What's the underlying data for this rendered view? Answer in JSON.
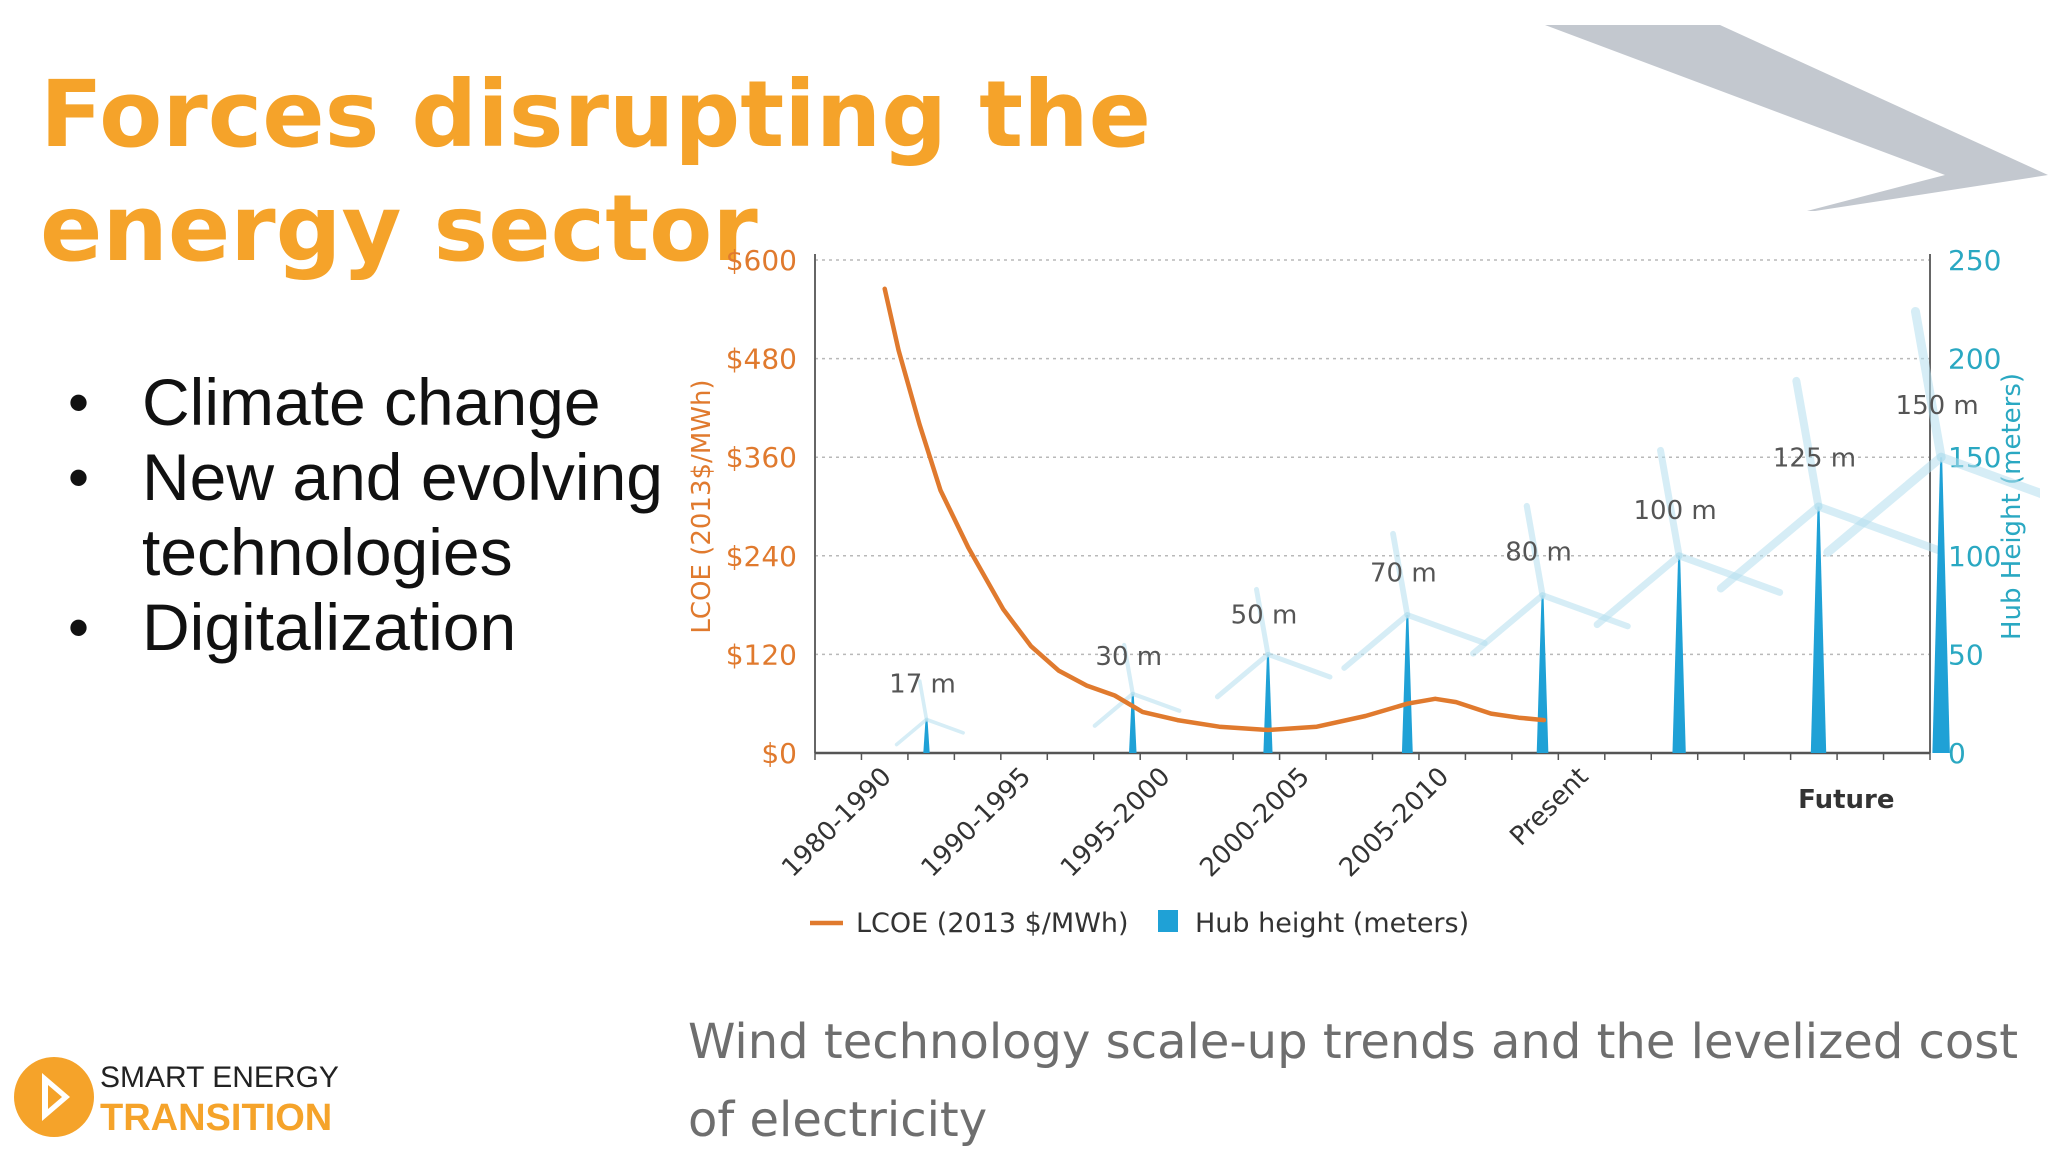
{
  "slide": {
    "title": "Forces disrupting the energy sector",
    "bullets": [
      "Climate change",
      "New and evolving technologies",
      "Digitalization"
    ],
    "caption": "Wind technology scale-up trends and the levelized cost of electricity",
    "logo": {
      "line1": "SMART ENERGY",
      "line2": "TRANSITION"
    },
    "colors": {
      "accent": "#f5a32a",
      "chevron": "#c3c8cf"
    }
  },
  "chart_data": {
    "type": "line",
    "title": "",
    "xlabel": "",
    "ylabel_left": "LCOE (2013$/MWh)",
    "ylabel_right": "Hub Height (meters)",
    "ylim_left": [
      0,
      600
    ],
    "ylim_right": [
      0,
      250
    ],
    "yticks_left": [
      "$0",
      "$120",
      "$240",
      "$360",
      "$480",
      "$600"
    ],
    "yticks_right": [
      "0",
      "50",
      "100",
      "150",
      "200",
      "250"
    ],
    "grid": true,
    "legend_position": "bottom-left",
    "categories": [
      "1980-1990",
      "1990-1995",
      "1995-2000",
      "2000-2005",
      "2005-2010",
      "Present",
      "",
      "Future"
    ],
    "legend": [
      {
        "name": "LCOE (2013 $/MWh)",
        "color": "#e07a2e",
        "kind": "line"
      },
      {
        "name": "Hub height (meters)",
        "color": "#1fa1d6",
        "kind": "bar"
      }
    ],
    "series": [
      {
        "name": "LCOE (2013 $/MWh)",
        "color": "#e07a2e",
        "points": [
          {
            "t": 0.0,
            "v": 565
          },
          {
            "t": 0.1,
            "v": 490
          },
          {
            "t": 0.25,
            "v": 400
          },
          {
            "t": 0.4,
            "v": 320
          },
          {
            "t": 0.6,
            "v": 250
          },
          {
            "t": 0.85,
            "v": 175
          },
          {
            "t": 1.05,
            "v": 130
          },
          {
            "t": 1.25,
            "v": 100
          },
          {
            "t": 1.45,
            "v": 82
          },
          {
            "t": 1.65,
            "v": 70
          },
          {
            "t": 1.85,
            "v": 50
          },
          {
            "t": 2.1,
            "v": 40
          },
          {
            "t": 2.4,
            "v": 32
          },
          {
            "t": 2.75,
            "v": 28
          },
          {
            "t": 3.1,
            "v": 32
          },
          {
            "t": 3.45,
            "v": 45
          },
          {
            "t": 3.75,
            "v": 60
          },
          {
            "t": 3.95,
            "v": 66
          },
          {
            "t": 4.1,
            "v": 62
          },
          {
            "t": 4.35,
            "v": 48
          },
          {
            "t": 4.55,
            "v": 43
          },
          {
            "t": 4.73,
            "v": 40
          }
        ]
      },
      {
        "name": "Hub height (meters)",
        "color": "#1fa1d6",
        "bars": [
          {
            "t": 0.3,
            "v": 17,
            "label": "17 m"
          },
          {
            "t": 1.78,
            "v": 30,
            "label": "30 m"
          },
          {
            "t": 2.75,
            "v": 50,
            "label": "50 m"
          },
          {
            "t": 3.75,
            "v": 70,
            "label": "70 m"
          },
          {
            "t": 4.72,
            "v": 80,
            "label": "80 m"
          },
          {
            "t": 5.7,
            "v": 100,
            "label": "100 m"
          },
          {
            "t": 6.7,
            "v": 125,
            "label": "125 m"
          },
          {
            "t": 7.58,
            "v": 150,
            "label": "150 m"
          }
        ]
      }
    ]
  }
}
